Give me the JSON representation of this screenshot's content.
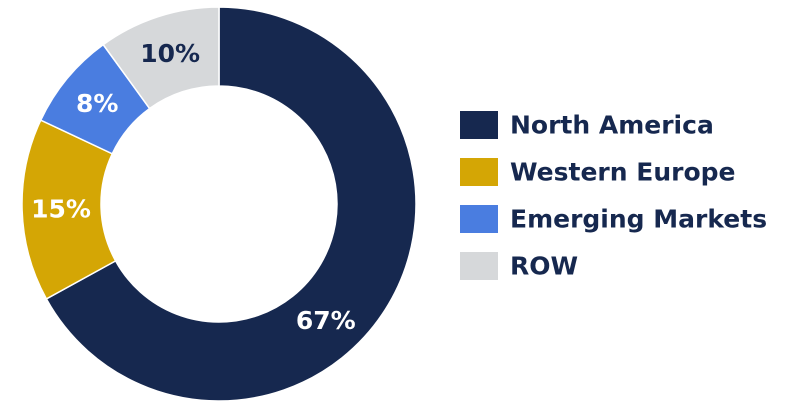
{
  "chart_data": {
    "type": "pie",
    "variant": "donut",
    "title": "",
    "slices": [
      {
        "label": "North America",
        "value": 67,
        "display": "67%",
        "color": "#16284f",
        "text_color": "#ffffff"
      },
      {
        "label": "Western Europe",
        "value": 15,
        "display": "15%",
        "color": "#d4a605",
        "text_color": "#ffffff"
      },
      {
        "label": "Emerging Markets",
        "value": 8,
        "display": "8%",
        "color": "#4a7de0",
        "text_color": "#ffffff"
      },
      {
        "label": "ROW",
        "value": 10,
        "display": "10%",
        "color": "#d6d8da",
        "text_color": "#16284f"
      }
    ],
    "start": "top, clockwise",
    "legend": "right",
    "grid": false
  }
}
